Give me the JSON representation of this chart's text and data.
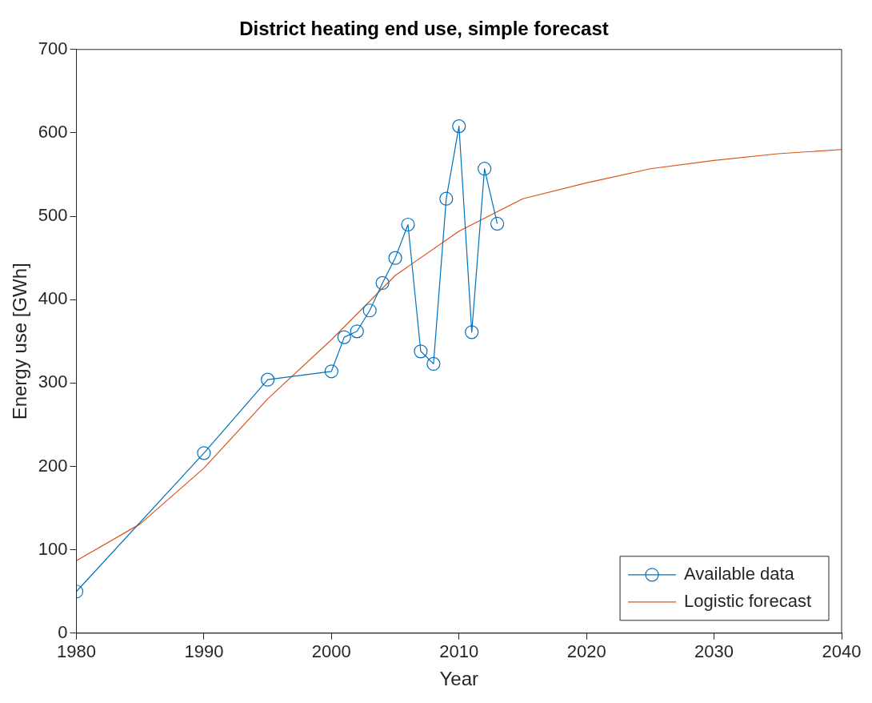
{
  "chart_data": {
    "type": "line",
    "title": "District heating end use, simple forecast",
    "xlabel": "Year",
    "ylabel": "Energy use [GWh]",
    "xlim": [
      1980,
      2040
    ],
    "xticks": [
      1980,
      1990,
      2000,
      2010,
      2020,
      2030,
      2040
    ],
    "ylim": [
      0,
      700
    ],
    "yticks": [
      0,
      100,
      200,
      300,
      400,
      500,
      600,
      700
    ],
    "grid": false,
    "legend": "bottom right",
    "series": [
      {
        "name": "Available data",
        "color": "#0072bd",
        "marker": "circle",
        "x": [
          1980,
          1990,
          1995,
          2000,
          2001,
          2002,
          2003,
          2004,
          2005,
          2006,
          2007,
          2008,
          2009,
          2010,
          2011,
          2012,
          2013
        ],
        "values": [
          50,
          216,
          304,
          314,
          355,
          362,
          387,
          420,
          450,
          490,
          338,
          323,
          521,
          608,
          361,
          557,
          491
        ]
      },
      {
        "name": "Logistic forecast",
        "color": "#d95319",
        "marker": "none",
        "x": [
          1980,
          1985,
          1990,
          1995,
          2000,
          2005,
          2010,
          2015,
          2020,
          2025,
          2030,
          2035,
          2040
        ],
        "values": [
          87,
          131,
          198,
          281,
          352,
          429,
          482,
          521,
          540,
          557,
          567,
          575,
          580
        ]
      }
    ]
  }
}
